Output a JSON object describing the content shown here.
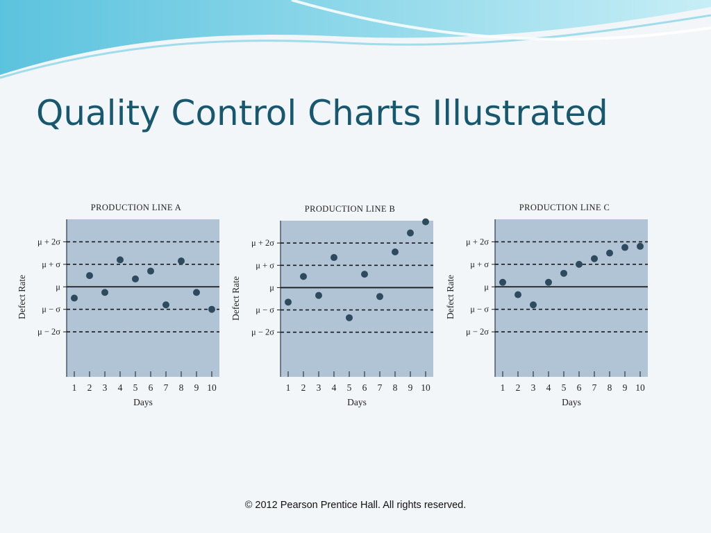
{
  "slide": {
    "title": "Quality Control Charts Illustrated",
    "footer": "© 2012 Pearson Prentice Hall. All rights reserved."
  },
  "colors": {
    "title": "#17586e",
    "plot_background": "#b0c4d6",
    "points": "#2e4a5e"
  },
  "chart_data": [
    {
      "type": "scatter",
      "title": "PRODUCTION LINE A",
      "xlabel": "Days",
      "ylabel": "Defect Rate",
      "x": [
        1,
        2,
        3,
        4,
        5,
        6,
        7,
        8,
        9,
        10
      ],
      "y": [
        -0.5,
        0.5,
        -0.25,
        1.2,
        0.35,
        0.7,
        -0.8,
        1.15,
        -0.25,
        -1.0
      ],
      "ylim": [
        -4,
        3
      ],
      "y_reference_lines": [
        {
          "label": "μ + 2σ",
          "value": 2,
          "style": "dashed"
        },
        {
          "label": "μ + σ",
          "value": 1,
          "style": "dashed"
        },
        {
          "label": "μ",
          "value": 0,
          "style": "solid"
        },
        {
          "label": "μ − σ",
          "value": -1,
          "style": "dashed"
        },
        {
          "label": "μ − 2σ",
          "value": -2,
          "style": "dashed"
        }
      ],
      "grid": false,
      "legend": "none"
    },
    {
      "type": "scatter",
      "title": "PRODUCTION LINE B",
      "xlabel": "Days",
      "ylabel": "Defect Rate",
      "x": [
        1,
        2,
        3,
        4,
        5,
        6,
        7,
        8,
        9,
        10
      ],
      "y": [
        -0.65,
        0.5,
        -0.35,
        1.35,
        -1.35,
        0.6,
        -0.4,
        1.6,
        2.45,
        2.95
      ],
      "ylim": [
        -4,
        3
      ],
      "y_reference_lines": [
        {
          "label": "μ + 2σ",
          "value": 2,
          "style": "dashed"
        },
        {
          "label": "μ + σ",
          "value": 1,
          "style": "dashed"
        },
        {
          "label": "μ",
          "value": 0,
          "style": "solid"
        },
        {
          "label": "μ − σ",
          "value": -1,
          "style": "dashed"
        },
        {
          "label": "μ − 2σ",
          "value": -2,
          "style": "dashed"
        }
      ],
      "grid": false,
      "legend": "none"
    },
    {
      "type": "scatter",
      "title": "PRODUCTION LINE C",
      "xlabel": "Days",
      "ylabel": "Defect Rate",
      "x": [
        1,
        2,
        3,
        4,
        5,
        6,
        7,
        8,
        9,
        10
      ],
      "y": [
        0.2,
        -0.35,
        -0.8,
        0.2,
        0.6,
        1.0,
        1.25,
        1.5,
        1.75,
        1.8
      ],
      "ylim": [
        -4,
        3
      ],
      "y_reference_lines": [
        {
          "label": "μ + 2σ",
          "value": 2,
          "style": "dashed"
        },
        {
          "label": "μ + σ",
          "value": 1,
          "style": "dashed"
        },
        {
          "label": "μ",
          "value": 0,
          "style": "solid"
        },
        {
          "label": "μ − σ",
          "value": -1,
          "style": "dashed"
        },
        {
          "label": "μ − 2σ",
          "value": -2,
          "style": "dashed"
        }
      ],
      "grid": false,
      "legend": "none"
    }
  ]
}
